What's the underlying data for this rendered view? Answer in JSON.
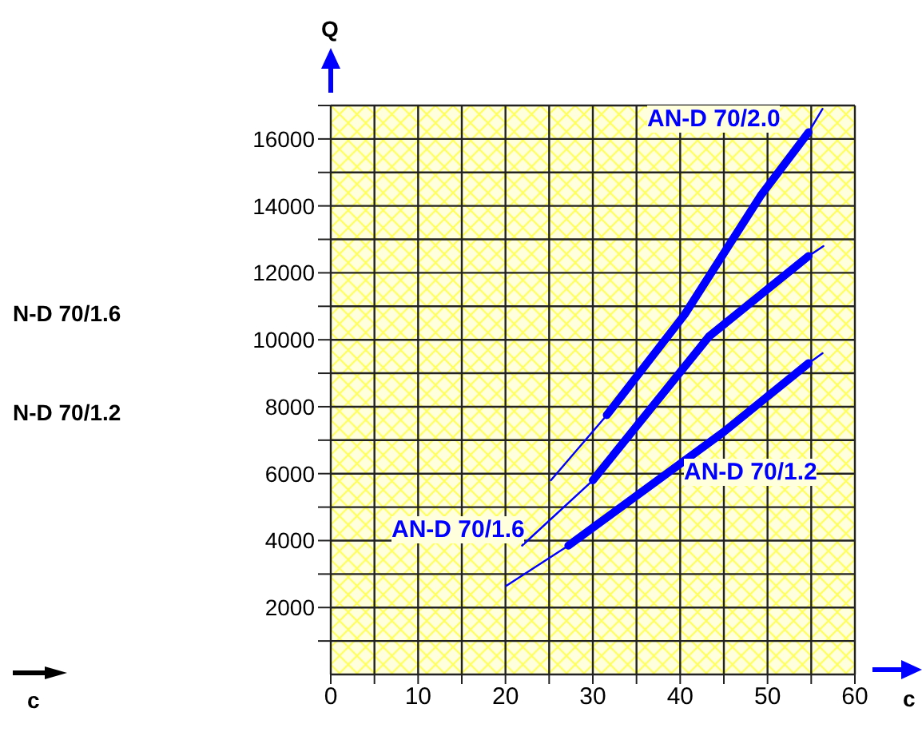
{
  "chart_data": {
    "type": "line",
    "xlabel": "c",
    "ylabel": "Q",
    "xlim": [
      0,
      60
    ],
    "ylim": [
      0,
      17000
    ],
    "xticks": [
      0,
      {
        "value": 5,
        "label": null
      },
      10,
      {
        "value": 15,
        "label": null
      },
      20,
      {
        "value": 25,
        "label": null
      },
      30,
      {
        "value": 35,
        "label": null
      },
      40,
      {
        "value": 45,
        "label": null
      },
      50,
      {
        "value": 55,
        "label": null
      },
      60
    ],
    "yticks": [
      {
        "value": 1000,
        "label": null
      },
      2000,
      {
        "value": 3000,
        "label": null
      },
      4000,
      {
        "value": 5000,
        "label": null
      },
      6000,
      {
        "value": 7000,
        "label": null
      },
      8000,
      {
        "value": 9000,
        "label": null
      },
      10000,
      {
        "value": 11000,
        "label": null
      },
      12000,
      {
        "value": 13000,
        "label": null
      },
      14000,
      {
        "value": 15000,
        "label": null
      },
      16000,
      {
        "value": 17000,
        "label": null
      }
    ],
    "grid": true,
    "marker": "none",
    "series": [
      {
        "name": "AN-D 70/2.0",
        "color": "#0000ff",
        "x": [
          25.2,
          31.6,
          40.5,
          49.2,
          54.7,
          56.3
        ],
        "values": [
          5800,
          7750,
          10750,
          14300,
          16200,
          16900
        ]
      },
      {
        "name": "AN-D 70/1.6",
        "color": "#0000ff",
        "x": [
          21.9,
          30,
          43.3,
          54.7,
          56.4
        ],
        "values": [
          3850,
          5800,
          10100,
          12500,
          12800
        ]
      },
      {
        "name": "AN-D 70/1.2",
        "color": "#0000ff",
        "x": [
          20.1,
          27.2,
          45,
          54.7,
          56.3
        ],
        "values": [
          2650,
          3850,
          7250,
          9300,
          9600
        ]
      },
      {
        "color": "#0000ff",
        "x": [
          31.6,
          40.5,
          49.2,
          54.7
        ],
        "values": [
          7750,
          10750,
          14300,
          16200
        ]
      },
      {
        "color": "#0000ff",
        "x": [
          30,
          43.3,
          54.7
        ],
        "values": [
          5800,
          10100,
          12500
        ]
      },
      {
        "color": "#0000ff",
        "x": [
          27.2,
          45,
          54.7
        ],
        "values": [
          3850,
          7250,
          9300
        ]
      }
    ],
    "annotations": [
      "N-D 70/1.6",
      "N-D 70/1.2",
      "c"
    ]
  }
}
